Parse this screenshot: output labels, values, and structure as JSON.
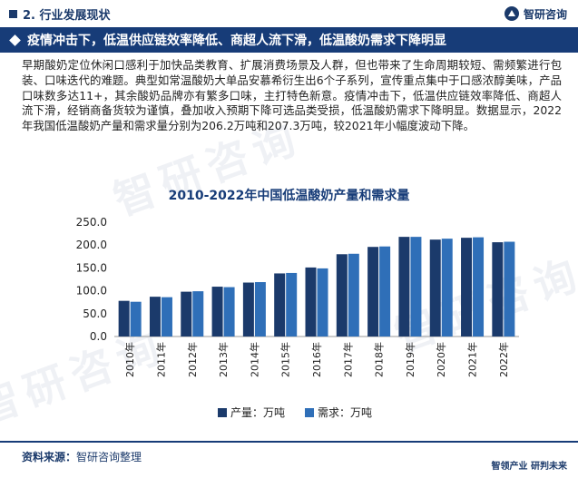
{
  "header": {
    "section_title": "2. 行业发展现状",
    "brand_name": "智研咨询"
  },
  "banner": {
    "title": "疫情冲击下，低温供应链效率降低、商超人流下滑，低温酸奶需求下降明显"
  },
  "body": {
    "paragraph": "早期酸奶定位休闲口感利于加快品类教育、扩展消费场景及人群，但也带来了生命周期较短、需频繁进行包装、口味迭代的难题。典型如常温酸奶大单品安慕希衍生出6个子系列，宣传重点集中于口感浓醇美味，产品口味数多达11+，其余酸奶品牌亦有繁多口味，主打特色新意。疫情冲击下，低温供应链效率降低、商超人流下滑，经销商备货较为谨慎，叠加收入预期下降可选品类受损，低温酸奶需求下降明显。数据显示，2022年我国低温酸奶产量和需求量分别为206.2万吨和207.3万吨，较2021年小幅度波动下降。"
  },
  "chart_data": {
    "type": "bar",
    "title": "2010-2022年中国低温酸奶产量和需求量",
    "categories": [
      "2010年",
      "2011年",
      "2012年",
      "2013年",
      "2014年",
      "2015年",
      "2016年",
      "2017年",
      "2018年",
      "2019年",
      "2020年",
      "2021年",
      "2022年"
    ],
    "series": [
      {
        "name": "产量：万吨",
        "color": "#1b3a6b",
        "values": [
          78,
          87,
          98,
          109,
          118,
          138,
          151,
          180,
          196,
          218,
          212,
          216,
          206.2
        ]
      },
      {
        "name": "需求：万吨",
        "color": "#2f6fb8",
        "values": [
          76,
          86,
          99,
          108,
          119,
          139,
          149,
          181,
          197,
          218,
          214,
          217,
          207.3
        ]
      }
    ],
    "yticks": [
      "0.0",
      "50.0",
      "100.0",
      "150.0",
      "200.0",
      "250.0"
    ],
    "ylim": [
      0,
      250
    ],
    "legend_position": "bottom",
    "grid": false
  },
  "footer": {
    "source_label": "资料来源：",
    "source_value": "智研咨询整理",
    "slogan": "智领产业  研判未来"
  },
  "watermark_text": "智研咨询"
}
